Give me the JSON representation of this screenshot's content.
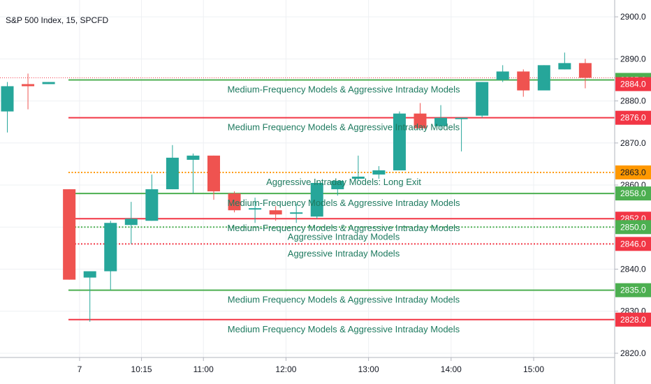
{
  "header": {
    "symbol": "S&P 500 Index, 15, SPCFD"
  },
  "colors": {
    "up": "#26a69a",
    "down": "#ef5350",
    "green_line": "#4caf50",
    "red_line": "#f23645",
    "orange_line": "#ff9800",
    "label_text": "#1e7a5f",
    "grid": "#eef0f3",
    "axis": "#b2b5be"
  },
  "chart_data": {
    "type": "candlestick",
    "y_axis": {
      "ylim": [
        2819,
        2904
      ],
      "ticks": [
        2820,
        2830,
        2840,
        2850,
        2860,
        2870,
        2880,
        2890,
        2900
      ],
      "tick_labels": [
        "2820.0",
        "2830.0",
        "2840.0",
        "2850.0",
        "2860.0",
        "2870.0",
        "2880.0",
        "2890.0",
        "2900.0"
      ]
    },
    "x_axis": {
      "ticks": [
        [
          "7",
          3.5
        ],
        [
          "10:15",
          6.5
        ],
        [
          "11:00",
          9.5
        ],
        [
          "12:00",
          13.5
        ],
        [
          "13:00",
          17.5
        ],
        [
          "14:00",
          21.5
        ],
        [
          "15:00",
          25.5
        ]
      ]
    },
    "candles": [
      {
        "i": 0,
        "o": 2877.5,
        "h": 2884.5,
        "l": 2872.5,
        "c": 2883.5
      },
      {
        "i": 1,
        "o": 2884,
        "h": 2886.5,
        "l": 2878,
        "c": 2883.5
      },
      {
        "i": 2,
        "o": 2884,
        "h": 2884.5,
        "l": 2884,
        "c": 2884.5
      },
      {
        "i": 3,
        "o": 2859,
        "h": 2859,
        "l": 2837.5,
        "c": 2837.5
      },
      {
        "i": 4,
        "o": 2838,
        "h": 2839.5,
        "l": 2827.5,
        "c": 2839.5
      },
      {
        "i": 5,
        "o": 2839.5,
        "h": 2851.5,
        "l": 2835,
        "c": 2851
      },
      {
        "i": 6,
        "o": 2850.5,
        "h": 2856,
        "l": 2846,
        "c": 2852
      },
      {
        "i": 7,
        "o": 2851.5,
        "h": 2862.5,
        "l": 2851.5,
        "c": 2859
      },
      {
        "i": 8,
        "o": 2859,
        "h": 2869.5,
        "l": 2859,
        "c": 2866.5
      },
      {
        "i": 9,
        "o": 2866,
        "h": 2867.5,
        "l": 2858,
        "c": 2867
      },
      {
        "i": 10,
        "o": 2867,
        "h": 2867,
        "l": 2856.5,
        "c": 2858.5
      },
      {
        "i": 11,
        "o": 2858,
        "h": 2858.5,
        "l": 2853.5,
        "c": 2854
      },
      {
        "i": 12,
        "o": 2854.5,
        "h": 2857,
        "l": 2851,
        "c": 2854.5
      },
      {
        "i": 13,
        "o": 2854,
        "h": 2855,
        "l": 2851.5,
        "c": 2853
      },
      {
        "i": 14,
        "o": 2853.5,
        "h": 2855.5,
        "l": 2851,
        "c": 2853.5
      },
      {
        "i": 15,
        "o": 2852.5,
        "h": 2861,
        "l": 2852,
        "c": 2860.5
      },
      {
        "i": 16,
        "o": 2859,
        "h": 2861,
        "l": 2857.5,
        "c": 2861
      },
      {
        "i": 17,
        "o": 2861.5,
        "h": 2867,
        "l": 2861,
        "c": 2862
      },
      {
        "i": 18,
        "o": 2862.5,
        "h": 2864.5,
        "l": 2861.5,
        "c": 2863.5
      },
      {
        "i": 19,
        "o": 2863.5,
        "h": 2877.5,
        "l": 2863.5,
        "c": 2877
      },
      {
        "i": 20,
        "o": 2877,
        "h": 2879.5,
        "l": 2873.5,
        "c": 2873.5
      },
      {
        "i": 21,
        "o": 2874,
        "h": 2879,
        "l": 2873,
        "c": 2876
      },
      {
        "i": 22,
        "o": 2876,
        "h": 2876,
        "l": 2868,
        "c": 2876
      },
      {
        "i": 23,
        "o": 2876.5,
        "h": 2884.5,
        "l": 2876,
        "c": 2884.5
      },
      {
        "i": 24,
        "o": 2885,
        "h": 2888.5,
        "l": 2884.5,
        "c": 2887
      },
      {
        "i": 25,
        "o": 2887,
        "h": 2887.5,
        "l": 2881,
        "c": 2882.5
      },
      {
        "i": 26,
        "o": 2882.5,
        "h": 2888.5,
        "l": 2882.5,
        "c": 2888.5
      },
      {
        "i": 27,
        "o": 2887.5,
        "h": 2891.5,
        "l": 2887.5,
        "c": 2889
      },
      {
        "i": 28,
        "o": 2889,
        "h": 2890,
        "l": 2883,
        "c": 2885.5
      }
    ],
    "current_price": 2885.5,
    "levels": [
      {
        "price": 2885,
        "tag": "2885.0",
        "color": "green",
        "style": "solid",
        "label": "Medium-Frequency Models & Aggressive Intraday Models"
      },
      {
        "price": 2884,
        "tag": "2884.0",
        "color": "red",
        "style": "none",
        "label": ""
      },
      {
        "price": 2876,
        "tag": "2876.0",
        "color": "red",
        "style": "solid",
        "label": "Medium Frequency Models & Aggressive Intraday Models"
      },
      {
        "price": 2863,
        "tag": "2863.0",
        "color": "orange",
        "style": "dotted",
        "label": "Aggressive Intraday Models: Long Exit"
      },
      {
        "price": 2858,
        "tag": "2858.0",
        "color": "green",
        "style": "solid",
        "label": "Medium-Frequency Models & Aggressive Intraday Models"
      },
      {
        "price": 2852,
        "tag": "2852.0",
        "color": "red",
        "style": "solid",
        "label": "Medium-Frequency Models & Aggressive Intraday Models"
      },
      {
        "price": 2850,
        "tag": "2850.0",
        "color": "green",
        "style": "dotted",
        "label": "Aggressive Intraday Models"
      },
      {
        "price": 2846,
        "tag": "2846.0",
        "color": "red",
        "style": "dotted",
        "label": "Aggressive Intraday Models"
      },
      {
        "price": 2835,
        "tag": "2835.0",
        "color": "green",
        "style": "solid",
        "label": "Medium Frequency Models & Aggressive Intraday Models"
      },
      {
        "price": 2828,
        "tag": "2828.0",
        "color": "red",
        "style": "solid",
        "label": "Medium Frequency Models & Aggressive Intraday Models"
      }
    ]
  }
}
